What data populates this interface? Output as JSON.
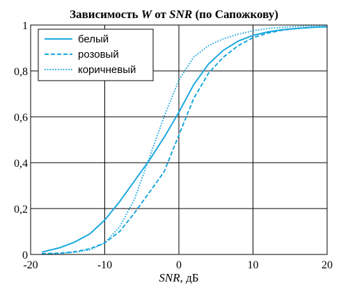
{
  "chart_data": {
    "type": "line",
    "title_prefix": "Зависимость ",
    "title_w": "W",
    "title_mid": " от ",
    "title_snr": "SNR",
    "title_suffix": " (по Сапожкову)",
    "xlabel_var": "SNR",
    "xlabel_unit": ", дБ",
    "xlim": [
      -20,
      20
    ],
    "ylim": [
      0,
      1
    ],
    "xticks": [
      -20,
      -10,
      0,
      10,
      20
    ],
    "xtick_labels": [
      "-20",
      "-10",
      "0",
      "10",
      "20"
    ],
    "yticks": [
      0,
      0.2,
      0.4,
      0.6,
      0.8,
      1
    ],
    "ytick_labels": [
      "0",
      "0,2",
      "0,4",
      "0,6",
      "0,8",
      "1"
    ],
    "grid": true,
    "legend_position": "top-left",
    "color": "#1aa7de",
    "series": [
      {
        "name": "белый",
        "style": "solid",
        "x": [
          -18.5,
          -16,
          -14,
          -12,
          -10,
          -8,
          -6,
          -4,
          -2,
          0,
          2,
          4,
          6,
          8,
          10,
          12,
          14,
          16,
          18,
          20
        ],
        "y": [
          0.01,
          0.03,
          0.055,
          0.09,
          0.15,
          0.23,
          0.32,
          0.41,
          0.51,
          0.62,
          0.74,
          0.83,
          0.89,
          0.93,
          0.955,
          0.97,
          0.98,
          0.985,
          0.99,
          0.992
        ]
      },
      {
        "name": "розовый",
        "style": "dashed",
        "x": [
          -18.5,
          -16,
          -14,
          -12,
          -10,
          -8,
          -6,
          -4,
          -2,
          0,
          2,
          4,
          6,
          8,
          10,
          12,
          14,
          16,
          18,
          20
        ],
        "y": [
          0.003,
          0.006,
          0.012,
          0.025,
          0.05,
          0.1,
          0.18,
          0.27,
          0.36,
          0.52,
          0.68,
          0.79,
          0.86,
          0.91,
          0.945,
          0.965,
          0.978,
          0.985,
          0.99,
          0.993
        ]
      },
      {
        "name": "коричневый",
        "style": "dotted",
        "x": [
          -18.5,
          -16,
          -14,
          -12,
          -10,
          -8,
          -6,
          -4,
          -2,
          0,
          2,
          4,
          6,
          8,
          10,
          12,
          14,
          16,
          18,
          20
        ],
        "y": [
          0.001,
          0.004,
          0.01,
          0.02,
          0.05,
          0.12,
          0.24,
          0.42,
          0.6,
          0.76,
          0.86,
          0.91,
          0.94,
          0.96,
          0.975,
          0.985,
          0.99,
          0.994,
          0.997,
          0.998
        ]
      }
    ]
  }
}
